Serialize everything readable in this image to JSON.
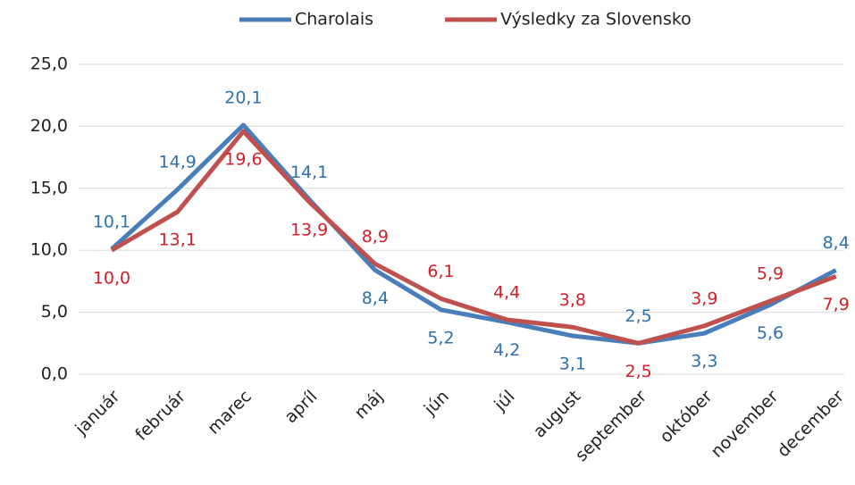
{
  "chart_data": {
    "type": "line",
    "categories": [
      "január",
      "február",
      "marec",
      "apríl",
      "máj",
      "jún",
      "júl",
      "august",
      "september",
      "október",
      "november",
      "december"
    ],
    "series": [
      {
        "name": "Charolais",
        "color": "#4a7ebb",
        "label_color": "#2e6fae",
        "values": [
          10.1,
          14.9,
          20.1,
          14.1,
          8.4,
          5.2,
          4.2,
          3.1,
          2.5,
          3.3,
          5.6,
          8.4
        ],
        "value_labels": [
          "10,1",
          "14,9",
          "20,1",
          "14,1",
          "8,4",
          "5,2",
          "4,2",
          "3,1",
          "2,5",
          "3,3",
          "5,6",
          "8,4"
        ]
      },
      {
        "name": "Výsledky za Slovensko",
        "color": "#c0504d",
        "label_color": "#d0202a",
        "values": [
          10.0,
          13.1,
          19.6,
          13.9,
          8.9,
          6.1,
          4.4,
          3.8,
          2.5,
          3.9,
          5.9,
          7.9
        ],
        "value_labels": [
          "10,0",
          "13,1",
          "19,6",
          "13,9",
          "8,9",
          "6,1",
          "4,4",
          "3,8",
          "2,5",
          "3,9",
          "5,9",
          "7,9"
        ]
      }
    ],
    "ylim": [
      0,
      25
    ],
    "yticks": [
      {
        "value": 0,
        "label": "0,0"
      },
      {
        "value": 5,
        "label": "5,0"
      },
      {
        "value": 10,
        "label": "10,0"
      },
      {
        "value": 15,
        "label": "15,0"
      },
      {
        "value": 20,
        "label": "20,0"
      },
      {
        "value": 25,
        "label": "25,0"
      }
    ],
    "grid": true,
    "legend": "top"
  }
}
